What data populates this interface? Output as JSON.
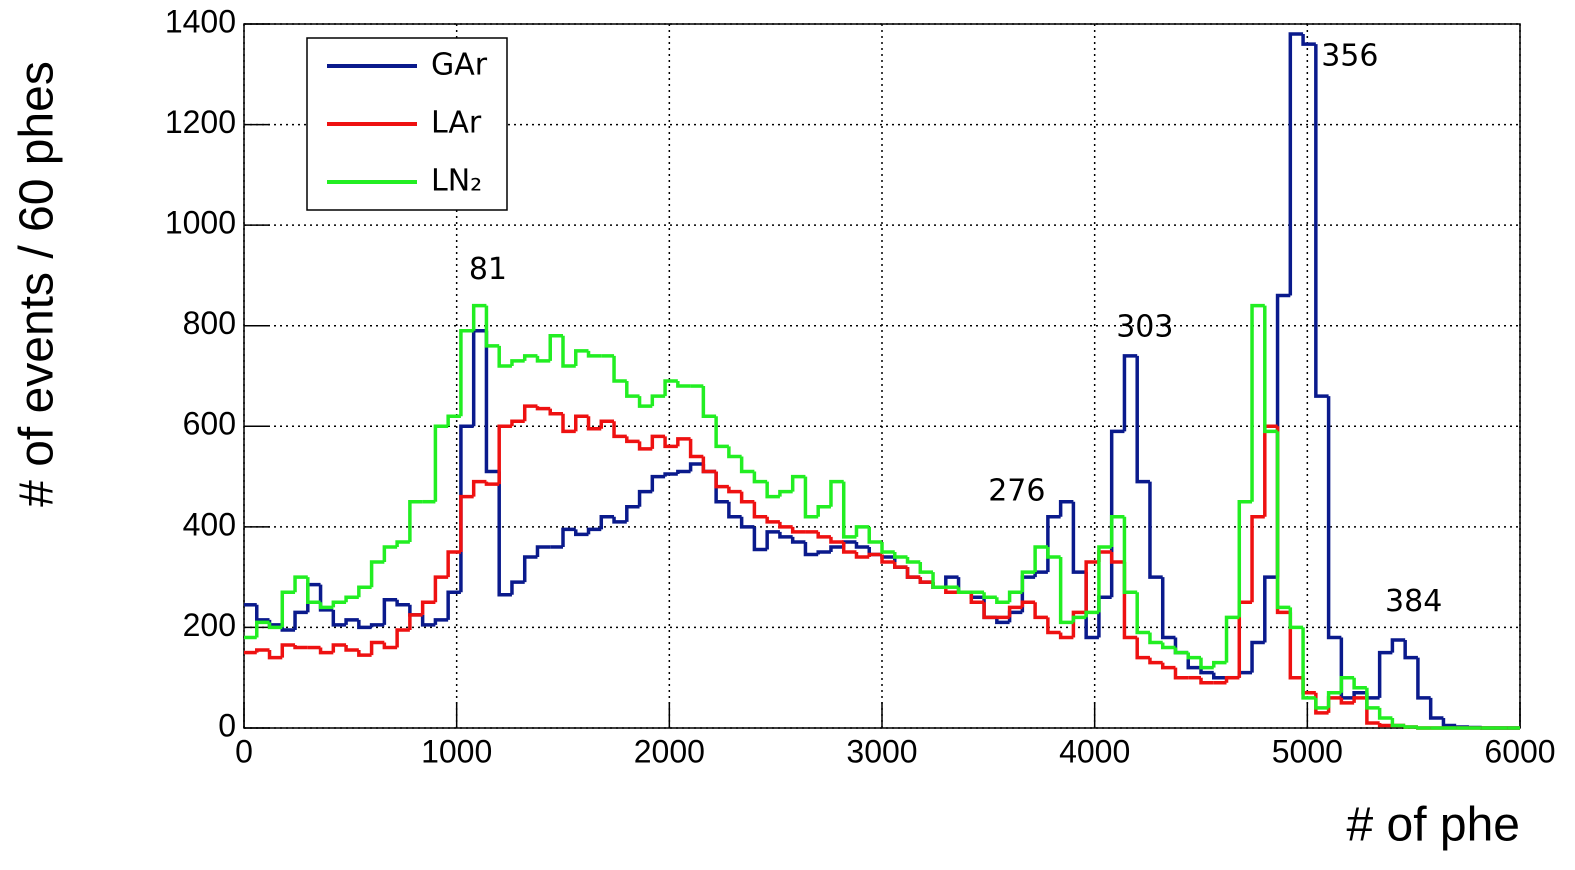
{
  "chart_data": {
    "type": "histogram",
    "xlabel": "# of phe",
    "ylabel": "# of events / 60 phes",
    "bins": [
      0,
      60,
      120,
      180,
      240,
      300,
      360,
      420,
      480,
      540,
      600,
      660,
      720,
      780,
      840,
      900,
      960,
      1020,
      1080,
      1140,
      1200,
      1260,
      1320,
      1380,
      1440,
      1500,
      1560,
      1620,
      1680,
      1740,
      1800,
      1860,
      1920,
      1980,
      2040,
      2100,
      2160,
      2220,
      2280,
      2340,
      2400,
      2460,
      2520,
      2580,
      2640,
      2700,
      2760,
      2820,
      2880,
      2940,
      3000,
      3060,
      3120,
      3180,
      3240,
      3300,
      3360,
      3420,
      3480,
      3540,
      3600,
      3660,
      3720,
      3780,
      3840,
      3900,
      3960,
      4020,
      4080,
      4140,
      4200,
      4260,
      4320,
      4380,
      4440,
      4500,
      4560,
      4620,
      4680,
      4740,
      4800,
      4860,
      4920,
      4980,
      5040,
      5100,
      5160,
      5220,
      5280,
      5340,
      5400,
      5460,
      5520,
      5580,
      5640,
      5700,
      5760,
      5820,
      5880,
      5940,
      6000
    ],
    "series": [
      {
        "name": "GAr",
        "color": "#0a1a8c",
        "values": [
          245,
          215,
          205,
          195,
          230,
          285,
          235,
          205,
          215,
          200,
          205,
          255,
          245,
          225,
          205,
          215,
          270,
          600,
          790,
          510,
          265,
          290,
          340,
          360,
          360,
          395,
          385,
          395,
          420,
          410,
          440,
          470,
          500,
          505,
          510,
          525,
          510,
          450,
          420,
          400,
          355,
          390,
          380,
          370,
          345,
          350,
          360,
          370,
          360,
          345,
          340,
          320,
          300,
          290,
          280,
          300,
          270,
          260,
          220,
          210,
          230,
          300,
          310,
          420,
          450,
          310,
          180,
          260,
          590,
          740,
          490,
          300,
          180,
          150,
          120,
          110,
          100,
          100,
          110,
          170,
          300,
          860,
          1380,
          1360,
          660,
          180,
          60,
          70,
          60,
          150,
          175,
          140,
          60,
          20,
          5,
          2,
          1,
          0,
          0,
          0
        ]
      },
      {
        "name": "LAr",
        "color": "#ee1111",
        "values": [
          150,
          155,
          140,
          165,
          160,
          160,
          150,
          165,
          155,
          145,
          170,
          160,
          195,
          225,
          250,
          300,
          350,
          460,
          490,
          485,
          600,
          610,
          640,
          635,
          625,
          590,
          620,
          595,
          610,
          580,
          570,
          555,
          580,
          560,
          575,
          540,
          510,
          480,
          470,
          450,
          420,
          410,
          400,
          390,
          390,
          380,
          370,
          350,
          340,
          345,
          330,
          320,
          300,
          290,
          280,
          270,
          270,
          250,
          220,
          220,
          240,
          250,
          220,
          190,
          180,
          230,
          330,
          350,
          330,
          180,
          140,
          130,
          120,
          100,
          100,
          90,
          90,
          100,
          250,
          420,
          600,
          230,
          100,
          70,
          30,
          60,
          50,
          60,
          10,
          5,
          5,
          2,
          0,
          0,
          0,
          0,
          0,
          0,
          0,
          0
        ]
      },
      {
        "name": "LN₂",
        "color": "#22ee22",
        "values": [
          180,
          210,
          200,
          270,
          300,
          250,
          240,
          250,
          260,
          280,
          330,
          360,
          370,
          450,
          450,
          600,
          620,
          790,
          840,
          760,
          720,
          730,
          740,
          730,
          780,
          720,
          750,
          740,
          740,
          690,
          660,
          640,
          660,
          690,
          680,
          680,
          620,
          560,
          540,
          510,
          490,
          460,
          470,
          500,
          420,
          440,
          490,
          380,
          400,
          370,
          350,
          340,
          330,
          310,
          280,
          280,
          270,
          270,
          260,
          250,
          270,
          310,
          360,
          340,
          210,
          220,
          230,
          360,
          420,
          270,
          190,
          170,
          160,
          150,
          140,
          120,
          130,
          220,
          450,
          840,
          590,
          240,
          200,
          60,
          40,
          70,
          100,
          80,
          40,
          20,
          5,
          2,
          0,
          0,
          0,
          0,
          0,
          0,
          0,
          0
        ]
      }
    ],
    "annotations": [
      {
        "text": "81",
        "x": 1147,
        "y": 910
      },
      {
        "text": "276",
        "x": 3634,
        "y": 469
      },
      {
        "text": "303",
        "x": 4236,
        "y": 795
      },
      {
        "text": "356",
        "x": 5200,
        "y": 1334
      },
      {
        "text": "384",
        "x": 5500,
        "y": 250
      }
    ],
    "xlim": [
      0,
      6000
    ],
    "ylim": [
      0,
      1400
    ],
    "xticks": [
      0,
      1000,
      2000,
      3000,
      4000,
      5000,
      6000
    ],
    "yticks": [
      0,
      200,
      400,
      600,
      800,
      1000,
      1200,
      1400
    ],
    "grid": true,
    "legend": "upper left"
  }
}
